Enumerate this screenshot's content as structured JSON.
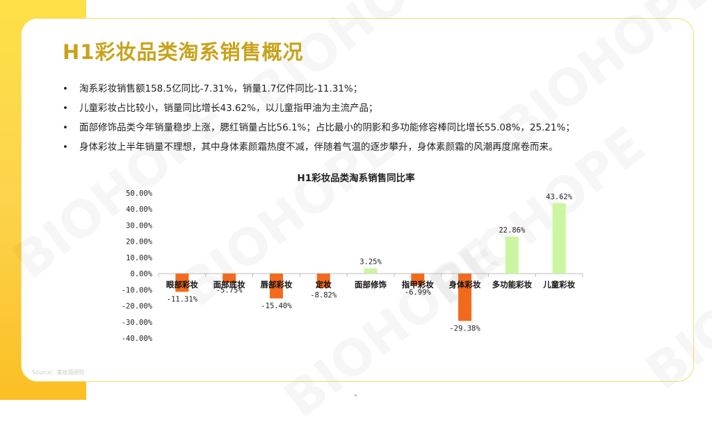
{
  "title": "H1彩妆品类淘系销售概况",
  "bullets": [
    "淘系彩妆销售额158.5亿同比-7.31%，销量1.7亿件同比-11.31%；",
    "儿童彩妆占比较小，销量同比增长43.62%，以儿童指甲油为主流产品；",
    "面部修饰品类今年销量稳步上涨，腮红销量占比56.1%；占比最小的阴影和多功能修容棒同比增长55.08%，25.21%；",
    "身体彩妆上半年销量不理想，其中身体素颜霜热度不减，伴随着气温的逐步攀升，身体素颜霜的风潮再度席卷而来。"
  ],
  "watermark_text": "BIOHOPE",
  "source": "Source：美妆观研院",
  "colors": {
    "negative": "#f26b1d",
    "positive": "#ccf5a0",
    "title": "#c8a21a",
    "accent": "#fcd34d"
  },
  "chart_data": {
    "type": "bar",
    "title": "H1彩妆品类淘系销售同比率",
    "categories": [
      "眼部彩妆",
      "面部底妆",
      "唇部彩妆",
      "定妆",
      "面部修饰",
      "指甲彩妆",
      "身体彩妆",
      "多功能彩妆",
      "儿童彩妆"
    ],
    "values": [
      -11.31,
      -5.75,
      -15.4,
      -8.82,
      3.25,
      -6.99,
      -29.38,
      22.86,
      43.62
    ],
    "value_labels": [
      "-11.31%",
      "-5.75%",
      "-15.40%",
      "-8.82%",
      "3.25%",
      "-6.99%",
      "-29.38%",
      "22.86%",
      "43.62%"
    ],
    "y_ticks": [
      50,
      40,
      30,
      20,
      10,
      0,
      -10,
      -20,
      -30,
      -40
    ],
    "y_tick_labels": [
      "50.00%",
      "40.00%",
      "30.00%",
      "20.00%",
      "10.00%",
      "0.00%",
      "-10.00%",
      "-20.00%",
      "-30.00%",
      "-40.00%"
    ],
    "ylim": [
      -40,
      50
    ],
    "grid": false,
    "legend": "none"
  }
}
